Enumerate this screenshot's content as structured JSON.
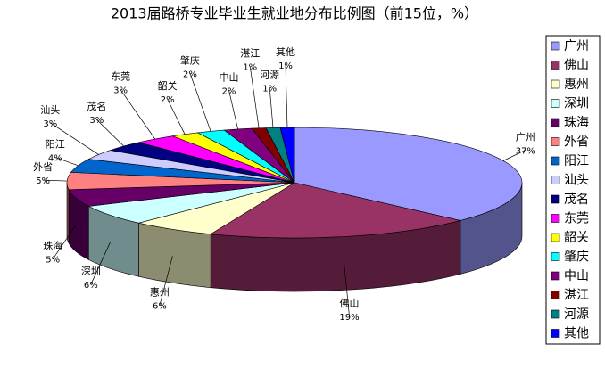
{
  "chart_data": {
    "type": "pie",
    "title": "2013届路桥专业毕业生就业地分布比例图（前15位，%）",
    "categories": [
      "广州",
      "佛山",
      "惠州",
      "深圳",
      "珠海",
      "外省",
      "阳江",
      "汕头",
      "茂名",
      "东莞",
      "韶关",
      "肇庆",
      "中山",
      "湛江",
      "河源",
      "其他"
    ],
    "values": [
      37,
      19,
      6,
      6,
      5,
      5,
      4,
      3,
      3,
      3,
      2,
      2,
      2,
      1,
      1,
      1
    ],
    "value_labels": [
      "37%",
      "19%",
      "6%",
      "6%",
      "5%",
      "5%",
      "4%",
      "3%",
      "3%",
      "3%",
      "2%",
      "2%",
      "2%",
      "1%",
      "1%",
      "1%"
    ],
    "colors": [
      "#9999ff",
      "#993366",
      "#ffffcc",
      "#ccffff",
      "#660066",
      "#ff8080",
      "#0066cc",
      "#ccccff",
      "#000080",
      "#ff00ff",
      "#ffff00",
      "#00ffff",
      "#800080",
      "#800000",
      "#008080",
      "#0000ff"
    ],
    "legend": "right"
  }
}
